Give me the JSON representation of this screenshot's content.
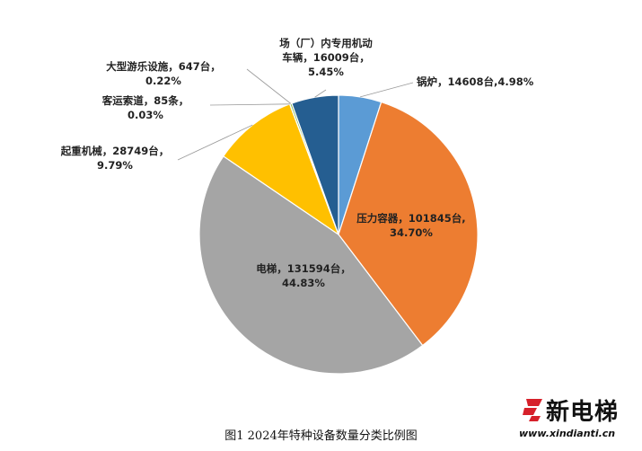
{
  "chart_data": {
    "type": "pie",
    "slices": [
      {
        "name": "锅炉",
        "value": 14608,
        "unit": "台",
        "percent": "4.98%",
        "label": "锅炉，14608台,4.98%",
        "color": "#5b9bd5"
      },
      {
        "name": "压力容器",
        "value": 101845,
        "unit": "台",
        "percent": "34.70%",
        "label_lines": [
          "压力容器，101845台,",
          "34.70%"
        ],
        "color": "#ed7d31"
      },
      {
        "name": "电梯",
        "value": 131594,
        "unit": "台",
        "percent": "44.83%",
        "label_lines": [
          "电梯，131594台，",
          "44.83%"
        ],
        "color": "#a5a5a5"
      },
      {
        "name": "起重机械",
        "value": 28749,
        "unit": "台",
        "percent": "9.79%",
        "label_lines": [
          "起重机械，28749台，",
          "9.79%"
        ],
        "color": "#ffc000"
      },
      {
        "name": "客运索道",
        "value": 85,
        "unit": "条",
        "percent": "0.03%",
        "label_lines": [
          "客运索道，85条，",
          "0.03%"
        ],
        "color": "#4472c4"
      },
      {
        "name": "大型游乐设施",
        "value": 647,
        "unit": "台",
        "percent": "0.22%",
        "label_lines": [
          "大型游乐设施，647台，",
          "0.22%"
        ],
        "color": "#70ad47"
      },
      {
        "name": "场（厂）内专用机动车辆",
        "value": 16009,
        "unit": "台",
        "percent": "5.45%",
        "label_lines": [
          "场（厂）内专用机动",
          "车辆，16009台，",
          "5.45%"
        ],
        "color": "#255e91"
      }
    ]
  },
  "caption": "图1 2024年特种设备数量分类比例图",
  "watermark": {
    "title": "新电梯",
    "url": "www.xindianti.cn",
    "logo_icon": "xindianti-logo-icon"
  }
}
